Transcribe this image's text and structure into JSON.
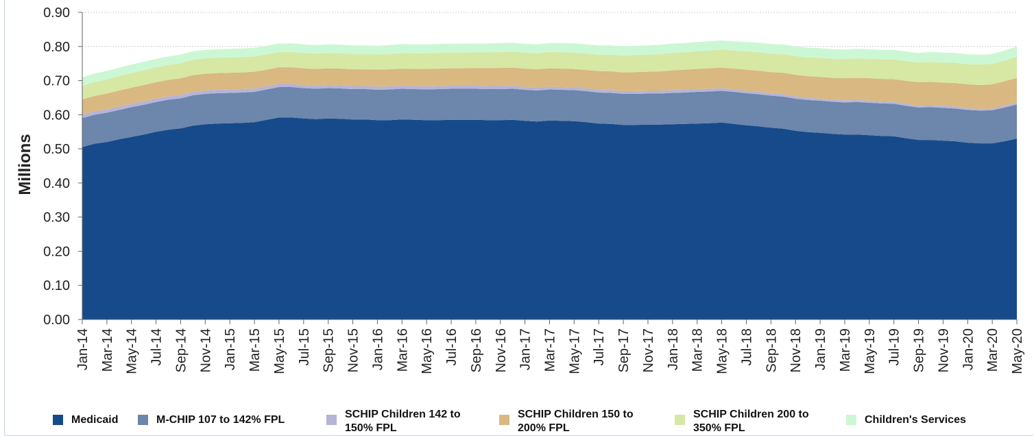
{
  "chart_data": {
    "type": "area",
    "stacked": true,
    "title": "",
    "xlabel": "",
    "ylabel": "Millions",
    "ylim": [
      0,
      0.9
    ],
    "yticks": [
      "0.00",
      "0.10",
      "0.20",
      "0.30",
      "0.40",
      "0.50",
      "0.60",
      "0.70",
      "0.80",
      "0.90"
    ],
    "grid": true,
    "legend_position": "bottom",
    "x": [
      "Jan-14",
      "Feb-14",
      "Mar-14",
      "Apr-14",
      "May-14",
      "Jun-14",
      "Jul-14",
      "Aug-14",
      "Sep-14",
      "Oct-14",
      "Nov-14",
      "Dec-14",
      "Jan-15",
      "Feb-15",
      "Mar-15",
      "Apr-15",
      "May-15",
      "Jun-15",
      "Jul-15",
      "Aug-15",
      "Sep-15",
      "Oct-15",
      "Nov-15",
      "Dec-15",
      "Jan-16",
      "Feb-16",
      "Mar-16",
      "Apr-16",
      "May-16",
      "Jun-16",
      "Jul-16",
      "Aug-16",
      "Sep-16",
      "Oct-16",
      "Nov-16",
      "Dec-16",
      "Jan-17",
      "Feb-17",
      "Mar-17",
      "Apr-17",
      "May-17",
      "Jun-17",
      "Jul-17",
      "Aug-17",
      "Sep-17",
      "Oct-17",
      "Nov-17",
      "Dec-17",
      "Jan-18",
      "Feb-18",
      "Mar-18",
      "Apr-18",
      "May-18",
      "Jun-18",
      "Jul-18",
      "Aug-18",
      "Sep-18",
      "Oct-18",
      "Nov-18",
      "Dec-18",
      "Jan-19",
      "Feb-19",
      "Mar-19",
      "Apr-19",
      "May-19",
      "Jun-19",
      "Jul-19",
      "Aug-19",
      "Sep-19",
      "Oct-19",
      "Nov-19",
      "Dec-19",
      "Jan-20",
      "Feb-20",
      "Mar-20",
      "Apr-20",
      "May-20"
    ],
    "xtick_labels": [
      "Jan-14",
      "Mar-14",
      "May-14",
      "Jul-14",
      "Sep-14",
      "Nov-14",
      "Jan-15",
      "Mar-15",
      "May-15",
      "Jul-15",
      "Sep-15",
      "Nov-15",
      "Jan-16",
      "Mar-16",
      "May-16",
      "Jul-16",
      "Sep-16",
      "Nov-16",
      "Jan-17",
      "Mar-17",
      "May-17",
      "Jul-17",
      "Sep-17",
      "Nov-17",
      "Jan-18",
      "Mar-18",
      "May-18",
      "Jul-18",
      "Sep-18",
      "Nov-18",
      "Jan-19",
      "Mar-19",
      "May-19",
      "Jul-19",
      "Sep-19",
      "Nov-19",
      "Jan-20",
      "Mar-20",
      "May-20"
    ],
    "series": [
      {
        "name": "Medicaid",
        "color": "#174a8b",
        "legend_label": "Medicaid",
        "values": [
          0.505,
          0.515,
          0.52,
          0.528,
          0.535,
          0.542,
          0.55,
          0.556,
          0.56,
          0.568,
          0.572,
          0.574,
          0.575,
          0.576,
          0.578,
          0.585,
          0.592,
          0.592,
          0.589,
          0.587,
          0.589,
          0.588,
          0.586,
          0.586,
          0.584,
          0.584,
          0.586,
          0.585,
          0.584,
          0.584,
          0.585,
          0.585,
          0.585,
          0.584,
          0.584,
          0.585,
          0.582,
          0.58,
          0.583,
          0.582,
          0.581,
          0.578,
          0.574,
          0.573,
          0.57,
          0.57,
          0.571,
          0.571,
          0.572,
          0.573,
          0.574,
          0.575,
          0.577,
          0.573,
          0.569,
          0.566,
          0.562,
          0.559,
          0.553,
          0.549,
          0.547,
          0.544,
          0.542,
          0.542,
          0.54,
          0.538,
          0.537,
          0.531,
          0.526,
          0.526,
          0.524,
          0.522,
          0.518,
          0.516,
          0.516,
          0.522,
          0.53
        ]
      },
      {
        "name": "M-CHIP 107 to 142% FPL",
        "color": "#6c86ac",
        "legend_label": "M-CHIP 107 to 142%  FPL",
        "values": [
          0.085,
          0.085,
          0.086,
          0.086,
          0.087,
          0.087,
          0.087,
          0.088,
          0.088,
          0.089,
          0.089,
          0.089,
          0.089,
          0.089,
          0.089,
          0.089,
          0.089,
          0.089,
          0.089,
          0.089,
          0.089,
          0.089,
          0.089,
          0.089,
          0.089,
          0.09,
          0.09,
          0.09,
          0.09,
          0.091,
          0.091,
          0.091,
          0.091,
          0.091,
          0.091,
          0.091,
          0.091,
          0.091,
          0.091,
          0.091,
          0.091,
          0.091,
          0.091,
          0.091,
          0.091,
          0.091,
          0.091,
          0.091,
          0.092,
          0.092,
          0.093,
          0.093,
          0.093,
          0.094,
          0.094,
          0.094,
          0.094,
          0.094,
          0.094,
          0.094,
          0.094,
          0.094,
          0.094,
          0.095,
          0.095,
          0.095,
          0.095,
          0.095,
          0.095,
          0.096,
          0.096,
          0.096,
          0.096,
          0.096,
          0.097,
          0.099,
          0.1
        ]
      },
      {
        "name": "SCHIP Children 142 to 150% FPL",
        "color": "#b5b4d8",
        "legend_label": "SCHIP Children 142 to\n150% FPL",
        "values": [
          0.01,
          0.01,
          0.01,
          0.01,
          0.01,
          0.01,
          0.01,
          0.01,
          0.01,
          0.01,
          0.01,
          0.01,
          0.01,
          0.01,
          0.01,
          0.009,
          0.009,
          0.009,
          0.009,
          0.009,
          0.009,
          0.009,
          0.009,
          0.009,
          0.009,
          0.009,
          0.009,
          0.009,
          0.009,
          0.009,
          0.009,
          0.009,
          0.009,
          0.009,
          0.009,
          0.009,
          0.008,
          0.008,
          0.008,
          0.008,
          0.008,
          0.008,
          0.008,
          0.008,
          0.008,
          0.008,
          0.008,
          0.008,
          0.008,
          0.008,
          0.008,
          0.008,
          0.008,
          0.007,
          0.007,
          0.007,
          0.007,
          0.007,
          0.007,
          0.007,
          0.006,
          0.006,
          0.006,
          0.006,
          0.006,
          0.006,
          0.006,
          0.006,
          0.006,
          0.006,
          0.006,
          0.006,
          0.005,
          0.005,
          0.005,
          0.005,
          0.005
        ]
      },
      {
        "name": "SCHIP Children 150 to 200% FPL",
        "color": "#d9b882",
        "legend_label": "SCHIP  Children 150 to\n200% FPL",
        "values": [
          0.045,
          0.045,
          0.046,
          0.047,
          0.047,
          0.048,
          0.048,
          0.048,
          0.049,
          0.049,
          0.049,
          0.049,
          0.049,
          0.049,
          0.049,
          0.049,
          0.049,
          0.049,
          0.049,
          0.049,
          0.049,
          0.049,
          0.049,
          0.049,
          0.05,
          0.05,
          0.05,
          0.05,
          0.051,
          0.051,
          0.051,
          0.051,
          0.052,
          0.053,
          0.053,
          0.053,
          0.054,
          0.054,
          0.054,
          0.054,
          0.054,
          0.054,
          0.055,
          0.055,
          0.055,
          0.056,
          0.056,
          0.057,
          0.058,
          0.059,
          0.059,
          0.06,
          0.06,
          0.061,
          0.062,
          0.062,
          0.062,
          0.063,
          0.063,
          0.063,
          0.064,
          0.064,
          0.065,
          0.065,
          0.066,
          0.066,
          0.066,
          0.067,
          0.068,
          0.068,
          0.068,
          0.069,
          0.07,
          0.07,
          0.071,
          0.072,
          0.073
        ]
      },
      {
        "name": "SCHIP Children 200 to 350% FPL",
        "color": "#d6e8a4",
        "legend_label": "SCHIP Children 200 to\n350% FPL",
        "values": [
          0.04,
          0.041,
          0.041,
          0.042,
          0.043,
          0.043,
          0.044,
          0.044,
          0.044,
          0.045,
          0.045,
          0.045,
          0.045,
          0.045,
          0.045,
          0.045,
          0.045,
          0.045,
          0.045,
          0.045,
          0.045,
          0.045,
          0.045,
          0.045,
          0.045,
          0.045,
          0.046,
          0.046,
          0.046,
          0.046,
          0.046,
          0.046,
          0.046,
          0.046,
          0.047,
          0.047,
          0.047,
          0.047,
          0.048,
          0.048,
          0.048,
          0.048,
          0.048,
          0.049,
          0.049,
          0.05,
          0.05,
          0.051,
          0.051,
          0.051,
          0.052,
          0.052,
          0.053,
          0.053,
          0.054,
          0.054,
          0.054,
          0.055,
          0.055,
          0.055,
          0.056,
          0.056,
          0.056,
          0.057,
          0.057,
          0.057,
          0.058,
          0.058,
          0.058,
          0.059,
          0.059,
          0.059,
          0.059,
          0.06,
          0.06,
          0.061,
          0.062
        ]
      },
      {
        "name": "Children's Services",
        "color": "#ccf7d4",
        "legend_label": "Children's Services",
        "values": [
          0.025,
          0.025,
          0.025,
          0.025,
          0.025,
          0.025,
          0.025,
          0.025,
          0.025,
          0.025,
          0.025,
          0.025,
          0.025,
          0.025,
          0.025,
          0.025,
          0.025,
          0.025,
          0.025,
          0.025,
          0.025,
          0.025,
          0.025,
          0.025,
          0.025,
          0.026,
          0.026,
          0.026,
          0.026,
          0.026,
          0.026,
          0.026,
          0.026,
          0.026,
          0.026,
          0.026,
          0.026,
          0.026,
          0.026,
          0.027,
          0.027,
          0.027,
          0.027,
          0.027,
          0.027,
          0.027,
          0.027,
          0.027,
          0.027,
          0.027,
          0.027,
          0.027,
          0.027,
          0.027,
          0.027,
          0.028,
          0.028,
          0.028,
          0.028,
          0.028,
          0.028,
          0.028,
          0.028,
          0.028,
          0.028,
          0.028,
          0.028,
          0.028,
          0.028,
          0.029,
          0.029,
          0.029,
          0.029,
          0.029,
          0.029,
          0.029,
          0.03
        ]
      }
    ]
  }
}
